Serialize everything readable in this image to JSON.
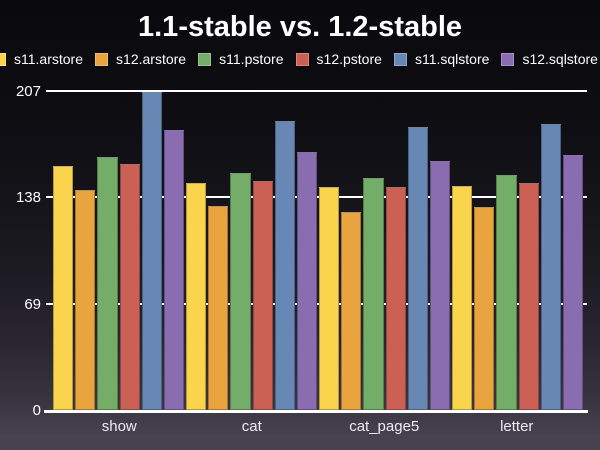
{
  "title": "1.1-stable vs. 1.2-stable",
  "chart_data": {
    "type": "bar",
    "title": "1.1-stable vs. 1.2-stable",
    "categories": [
      "show",
      "cat",
      "cat_page5",
      "letter"
    ],
    "series": [
      {
        "name": "s11.arstore",
        "color": "#FBD44E",
        "values": [
          159,
          148,
          145,
          146
        ]
      },
      {
        "name": "s12.arstore",
        "color": "#EAA43F",
        "values": [
          143,
          133,
          129,
          132
        ]
      },
      {
        "name": "s11.pstore",
        "color": "#74AD68",
        "values": [
          165,
          154,
          151,
          153
        ]
      },
      {
        "name": "s12.pstore",
        "color": "#CB6155",
        "values": [
          160,
          149,
          145,
          148
        ]
      },
      {
        "name": "s11.sqlstore",
        "color": "#6787B4",
        "values": [
          207,
          188,
          184,
          186
        ]
      },
      {
        "name": "s12.sqlstore",
        "color": "#8A6DB0",
        "values": [
          182,
          168,
          162,
          166
        ]
      }
    ],
    "xlabel": "",
    "ylabel": "",
    "ylim": [
      0,
      207
    ],
    "yticks": [
      0,
      69,
      138,
      207
    ],
    "grid": true,
    "grid_color": "#ffffff",
    "legend_position": "top",
    "text_color": "#ffffff",
    "background_top": "#0a0a0e",
    "background_bottom": "#484351"
  }
}
